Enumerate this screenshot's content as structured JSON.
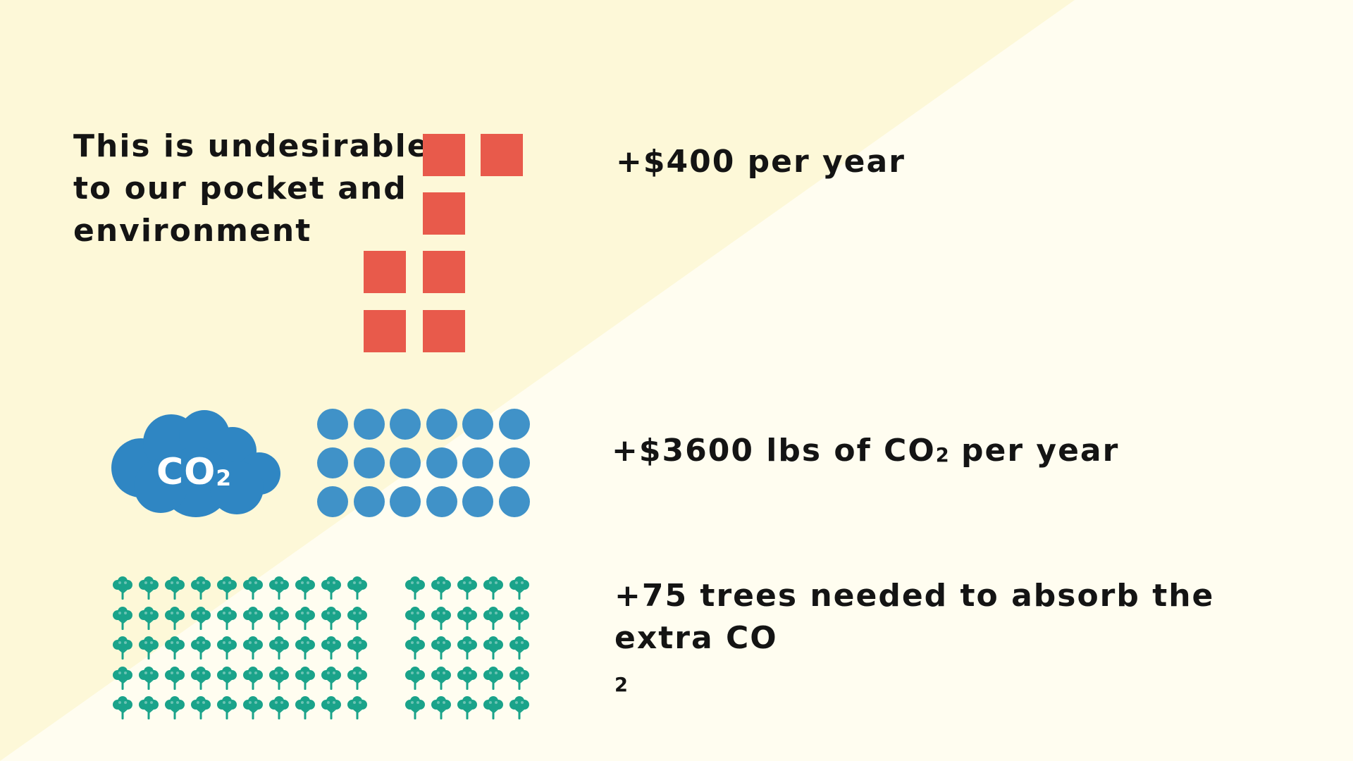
{
  "intro": {
    "lines": [
      "This is undesirable",
      "to our pocket and",
      "environment"
    ]
  },
  "stat_money": {
    "text": "+$400 per year"
  },
  "stat_co2": {
    "prefix": "+$3600 lbs of CO",
    "sub": "2",
    "suffix": " per year"
  },
  "stat_trees": {
    "line1": "+75 trees needed to absorb the",
    "line2_prefix": "extra CO",
    "line2_sub": "2"
  },
  "cloud": {
    "label": "CO",
    "sub": "2"
  },
  "icons": {
    "square": "money-square-icon",
    "dot": "co2-dot-icon",
    "cloud": "co2-cloud-icon",
    "tree": "tree-icon"
  },
  "colors": {
    "background_light": "#fffdf0",
    "background_band": "#fdf8d8",
    "square": "#e85a4b",
    "dot": "#4092c8",
    "cloud": "#2f86c3",
    "tree": "#1aa38a",
    "text": "#141414"
  },
  "counts": {
    "squares": 7,
    "dots": 18,
    "trees": 75
  }
}
